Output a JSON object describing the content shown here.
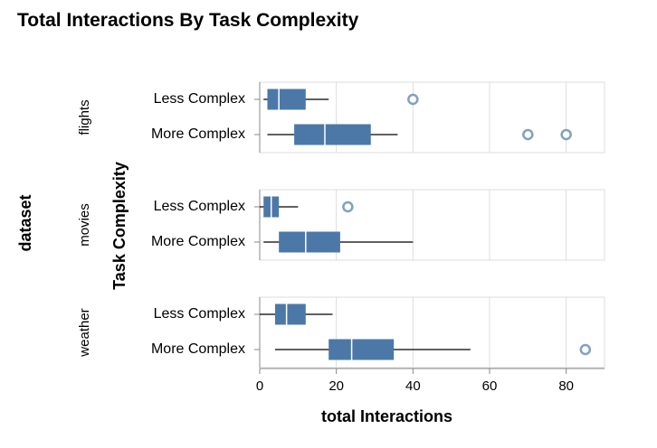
{
  "chart_data": {
    "type": "boxplot",
    "title": "Total Interactions By Task Complexity",
    "xlabel": "total Interactions",
    "ylabel": "Task Complexity",
    "facet_label": "dataset",
    "xlim": [
      0,
      90
    ],
    "x_ticks": [
      0,
      20,
      40,
      60,
      80
    ],
    "grid": true,
    "colors": {
      "box": "#4c78a8",
      "outlier": "#4c78a8",
      "median": "#ffffff",
      "grid": "#dddddd",
      "frame": "#dddddd",
      "axis": "#888888"
    },
    "facets": [
      {
        "name": "flights",
        "groups": [
          {
            "label": "Less Complex",
            "whisker_low": 1,
            "q1": 2,
            "median": 5,
            "q3": 12,
            "whisker_high": 18,
            "outliers": [
              40
            ]
          },
          {
            "label": "More Complex",
            "whisker_low": 2,
            "q1": 9,
            "median": 17,
            "q3": 29,
            "whisker_high": 36,
            "outliers": [
              70,
              80
            ]
          }
        ]
      },
      {
        "name": "movies",
        "groups": [
          {
            "label": "Less Complex",
            "whisker_low": 0,
            "q1": 1,
            "median": 3,
            "q3": 5,
            "whisker_high": 10,
            "outliers": [
              23
            ]
          },
          {
            "label": "More Complex",
            "whisker_low": 1,
            "q1": 5,
            "median": 12,
            "q3": 21,
            "whisker_high": 40,
            "outliers": []
          }
        ]
      },
      {
        "name": "weather",
        "groups": [
          {
            "label": "Less Complex",
            "whisker_low": 0,
            "q1": 4,
            "median": 7,
            "q3": 12,
            "whisker_high": 19,
            "outliers": []
          },
          {
            "label": "More Complex",
            "whisker_low": 4,
            "q1": 18,
            "median": 24,
            "q3": 35,
            "whisker_high": 55,
            "outliers": [
              85
            ]
          }
        ]
      }
    ]
  }
}
